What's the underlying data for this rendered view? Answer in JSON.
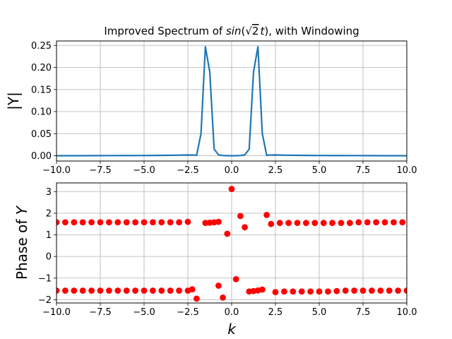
{
  "chart_data": [
    {
      "type": "line",
      "title": "Improved Spectrum of sin(√2 t), with Windowing",
      "title_parts": {
        "prefix": "Improved Spectrum of ",
        "func": "sin",
        "open": "(",
        "radical": "√",
        "radicand": "2",
        "var": "t",
        "suffix": "), with Windowing"
      },
      "xlabel": "",
      "ylabel": "|Y|",
      "xlim": [
        -10,
        10
      ],
      "ylim": [
        -0.012,
        0.26
      ],
      "xticks": [
        -10.0,
        -7.5,
        -5.0,
        -2.5,
        0.0,
        2.5,
        5.0,
        7.5,
        10.0
      ],
      "xtick_labels": [
        "−10.0",
        "−7.5",
        "−5.0",
        "−2.5",
        "0.0",
        "2.5",
        "5.0",
        "7.5",
        "10.0"
      ],
      "yticks": [
        0.0,
        0.05,
        0.1,
        0.15,
        0.2,
        0.25
      ],
      "ytick_labels": [
        "0.00",
        "0.05",
        "0.10",
        "0.15",
        "0.20",
        "0.25"
      ],
      "grid": true,
      "series_color": "#1f77b4",
      "series": [
        {
          "x": [
            -10.0,
            -9.0,
            -8.0,
            -7.0,
            -6.0,
            -5.0,
            -4.5,
            -4.0,
            -3.5,
            -3.0,
            -2.5,
            -2.2,
            -2.0,
            -1.75,
            -1.5,
            -1.25,
            -1.0,
            -0.75,
            -0.5,
            -0.25,
            0.0,
            0.25,
            0.5,
            0.75,
            1.0,
            1.25,
            1.5,
            1.75,
            2.0,
            2.2,
            2.5,
            3.0,
            3.5,
            4.0,
            4.5,
            5.0,
            6.0,
            7.0,
            8.0,
            9.0,
            10.0
          ],
          "y": [
            0.0,
            0.0,
            0.0002,
            0.0003,
            0.0004,
            0.0005,
            0.0006,
            0.0008,
            0.001,
            0.0013,
            0.0018,
            0.0015,
            0.001,
            0.05,
            0.247,
            0.19,
            0.015,
            0.002,
            0.0005,
            0.0,
            0.0,
            0.0,
            0.0005,
            0.002,
            0.015,
            0.19,
            0.247,
            0.05,
            0.001,
            0.0015,
            0.0018,
            0.0013,
            0.001,
            0.0008,
            0.0006,
            0.0005,
            0.0004,
            0.0003,
            0.0002,
            0.0,
            0.0
          ]
        }
      ]
    },
    {
      "type": "scatter",
      "title": "",
      "xlabel": "k",
      "ylabel": "Phase of Y",
      "ylabel_parts": {
        "prefix": "Phase of ",
        "var": "Y"
      },
      "xlim": [
        -10,
        10
      ],
      "ylim": [
        -2.15,
        3.4
      ],
      "xticks": [
        -10.0,
        -7.5,
        -5.0,
        -2.5,
        0.0,
        2.5,
        5.0,
        7.5,
        10.0
      ],
      "xtick_labels": [
        "−10.0",
        "−7.5",
        "−5.0",
        "−2.5",
        "0.0",
        "2.5",
        "5.0",
        "7.5",
        "10.0"
      ],
      "yticks": [
        -2,
        -1,
        0,
        1,
        2,
        3
      ],
      "ytick_labels": [
        "−2",
        "−1",
        "0",
        "1",
        "2",
        "3"
      ],
      "grid": true,
      "point_color": "#ff0000",
      "points": [
        [
          -10.0,
          1.58
        ],
        [
          -9.5,
          1.58
        ],
        [
          -9.0,
          1.58
        ],
        [
          -8.5,
          1.58
        ],
        [
          -8.0,
          1.58
        ],
        [
          -7.5,
          1.58
        ],
        [
          -7.0,
          1.58
        ],
        [
          -6.5,
          1.58
        ],
        [
          -6.0,
          1.58
        ],
        [
          -5.5,
          1.58
        ],
        [
          -5.0,
          1.58
        ],
        [
          -4.5,
          1.58
        ],
        [
          -4.0,
          1.58
        ],
        [
          -3.5,
          1.58
        ],
        [
          -3.0,
          1.58
        ],
        [
          -2.5,
          1.6
        ],
        [
          -1.5,
          1.55
        ],
        [
          -1.25,
          1.56
        ],
        [
          -1.0,
          1.58
        ],
        [
          -0.75,
          1.6
        ],
        [
          -0.25,
          1.05
        ],
        [
          0.0,
          3.12
        ],
        [
          0.5,
          1.87
        ],
        [
          0.75,
          1.35
        ],
        [
          2.0,
          1.92
        ],
        [
          2.25,
          1.5
        ],
        [
          2.75,
          1.55
        ],
        [
          3.25,
          1.55
        ],
        [
          3.75,
          1.55
        ],
        [
          4.25,
          1.55
        ],
        [
          4.75,
          1.55
        ],
        [
          5.25,
          1.55
        ],
        [
          5.75,
          1.55
        ],
        [
          6.25,
          1.55
        ],
        [
          6.75,
          1.55
        ],
        [
          7.25,
          1.58
        ],
        [
          7.75,
          1.58
        ],
        [
          8.25,
          1.58
        ],
        [
          8.75,
          1.58
        ],
        [
          9.25,
          1.58
        ],
        [
          9.75,
          1.58
        ],
        [
          -10.0,
          -1.58
        ],
        [
          -9.5,
          -1.58
        ],
        [
          -9.0,
          -1.58
        ],
        [
          -8.5,
          -1.58
        ],
        [
          -8.0,
          -1.58
        ],
        [
          -7.5,
          -1.58
        ],
        [
          -7.0,
          -1.58
        ],
        [
          -6.5,
          -1.58
        ],
        [
          -6.0,
          -1.58
        ],
        [
          -5.5,
          -1.58
        ],
        [
          -5.0,
          -1.58
        ],
        [
          -4.5,
          -1.58
        ],
        [
          -4.0,
          -1.58
        ],
        [
          -3.5,
          -1.58
        ],
        [
          -3.0,
          -1.58
        ],
        [
          -2.5,
          -1.58
        ],
        [
          -2.25,
          -1.52
        ],
        [
          -2.0,
          -1.95
        ],
        [
          -0.75,
          -1.35
        ],
        [
          -0.5,
          -1.9
        ],
        [
          0.25,
          -1.05
        ],
        [
          1.0,
          -1.62
        ],
        [
          1.25,
          -1.6
        ],
        [
          1.5,
          -1.57
        ],
        [
          1.75,
          -1.53
        ],
        [
          2.5,
          -1.65
        ],
        [
          3.0,
          -1.62
        ],
        [
          3.5,
          -1.62
        ],
        [
          4.0,
          -1.62
        ],
        [
          4.5,
          -1.62
        ],
        [
          5.0,
          -1.62
        ],
        [
          5.5,
          -1.62
        ],
        [
          6.0,
          -1.6
        ],
        [
          6.5,
          -1.58
        ],
        [
          7.0,
          -1.58
        ],
        [
          7.5,
          -1.58
        ],
        [
          8.0,
          -1.58
        ],
        [
          8.5,
          -1.58
        ],
        [
          9.0,
          -1.58
        ],
        [
          9.5,
          -1.58
        ],
        [
          10.0,
          -1.58
        ]
      ]
    }
  ]
}
